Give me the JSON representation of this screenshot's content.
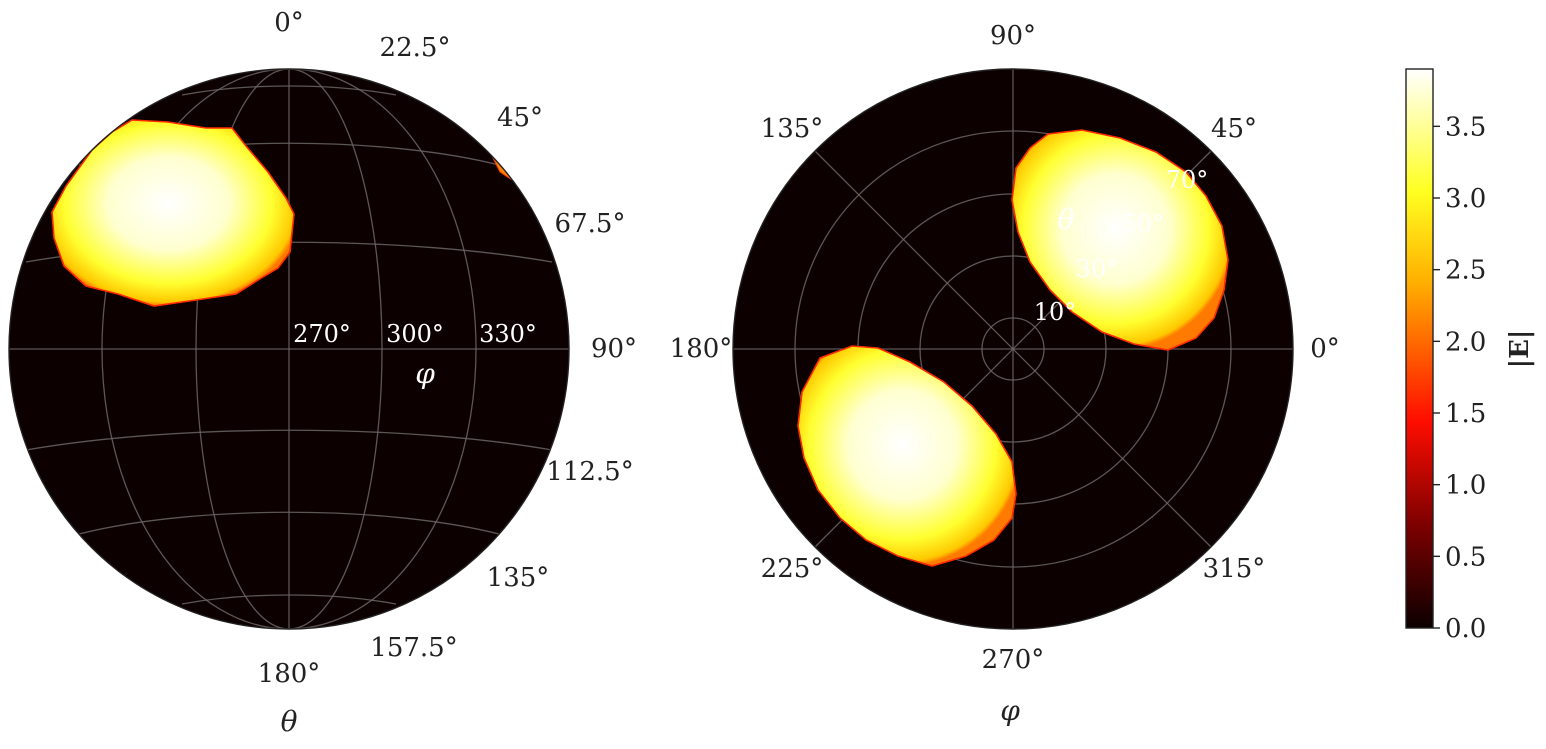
{
  "chart_data": [
    {
      "type": "heatmap",
      "projection": "orthographic sphere (side view)",
      "background_color": "#0d0000",
      "theta_tick_labels": [
        "0°",
        "22.5°",
        "45°",
        "67.5°",
        "90°",
        "112.5°",
        "135°",
        "157.5°",
        "180°"
      ],
      "phi_tick_labels": [
        "270°",
        "300°",
        "330°"
      ],
      "xlabel": "φ",
      "ylabel": "θ",
      "grid": true,
      "regions": [
        {
          "description": "bright lobe",
          "theta_center": 45,
          "phi_center": 228,
          "value_max": 3.9
        },
        {
          "description": "edge sliver",
          "theta_center": 45,
          "phi_center": 0,
          "value_max": 2.3
        }
      ]
    },
    {
      "type": "heatmap",
      "projection": "polar (top view)",
      "background_color": "#0d0000",
      "phi_tick_labels": [
        "0°",
        "45°",
        "90°",
        "135°",
        "180°",
        "225°",
        "270°",
        "315°"
      ],
      "theta_ring_labels": [
        "10°",
        "30°",
        "50°",
        "70°"
      ],
      "radial_label": "θ",
      "xlabel": "φ",
      "grid": true,
      "regions": [
        {
          "description": "lobe 1",
          "phi_center": 52,
          "theta_center": 45,
          "value_max": 3.9
        },
        {
          "description": "lobe 2",
          "phi_center": 232,
          "theta_center": 45,
          "value_max": 3.9
        }
      ]
    }
  ],
  "colorbar": {
    "label": "|E|",
    "colormap": "hot",
    "ticks": [
      "0.0",
      "0.5",
      "1.0",
      "1.5",
      "2.0",
      "2.5",
      "3.0",
      "3.5"
    ],
    "range": [
      0.0,
      3.9
    ]
  }
}
